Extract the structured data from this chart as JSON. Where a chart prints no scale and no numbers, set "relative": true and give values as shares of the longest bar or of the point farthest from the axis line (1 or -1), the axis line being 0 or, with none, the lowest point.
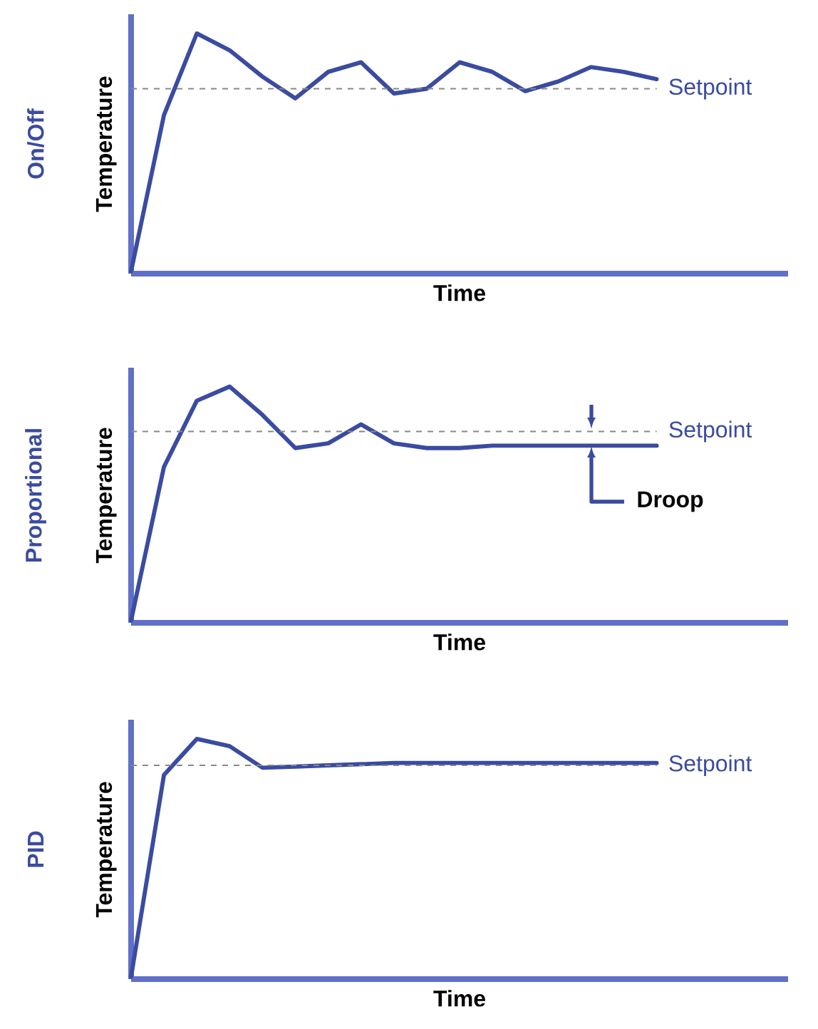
{
  "chart_data": [
    {
      "type": "line",
      "title": "On/Off",
      "xlabel": "Time",
      "ylabel": "Temperature",
      "relative": true,
      "categories": [
        null,
        null,
        null,
        null,
        null,
        null,
        null,
        null,
        null,
        null,
        null,
        null,
        null,
        null,
        null,
        null,
        null
      ],
      "series": [
        {
          "color": "#3a4ba0",
          "values": [
            0.01,
            0.66,
            1.0,
            0.93,
            0.82,
            0.73,
            0.84,
            0.88,
            0.75,
            0.77,
            0.88,
            0.84,
            0.76,
            0.8,
            0.86,
            0.84,
            0.81
          ]
        }
      ],
      "ref_lines": [
        {
          "axis": "y",
          "value": 0.77,
          "label": "Setpoint",
          "color": "#888888",
          "line_style": "dashed"
        }
      ]
    },
    {
      "type": "line",
      "title": "Proportional",
      "xlabel": "Time",
      "ylabel": "Temperature",
      "relative": true,
      "categories": [
        null,
        null,
        null,
        null,
        null,
        null,
        null,
        null,
        null,
        null,
        null,
        null,
        null,
        null,
        null,
        null,
        null
      ],
      "series": [
        {
          "color": "#3a4ba0",
          "values": [
            0.01,
            0.66,
            0.94,
            1.0,
            0.88,
            0.74,
            0.76,
            0.84,
            0.76,
            0.74,
            0.74,
            0.75,
            0.75,
            0.75,
            0.75,
            0.75,
            0.75
          ]
        }
      ],
      "ref_lines": [
        {
          "axis": "y",
          "value": 0.81,
          "label": "Setpoint",
          "color": "#888888",
          "line_style": "dashed"
        }
      ],
      "annotations": [
        "Droop"
      ]
    },
    {
      "type": "line",
      "title": "PID",
      "xlabel": "Time",
      "ylabel": "Temperature",
      "relative": true,
      "categories": [
        null,
        null,
        null,
        null,
        null,
        null,
        null,
        null,
        null,
        null,
        null,
        null,
        null,
        null,
        null,
        null,
        null
      ],
      "series": [
        {
          "color": "#3a4ba0",
          "values": [
            0.01,
            0.85,
            1.0,
            0.97,
            0.88,
            0.885,
            0.89,
            0.895,
            0.9,
            0.9,
            0.9,
            0.9,
            0.9,
            0.9,
            0.9,
            0.9,
            0.9
          ]
        }
      ],
      "ref_lines": [
        {
          "axis": "y",
          "value": 0.89,
          "label": "Setpoint",
          "color": "#888888",
          "line_style": "dashed"
        }
      ]
    }
  ]
}
